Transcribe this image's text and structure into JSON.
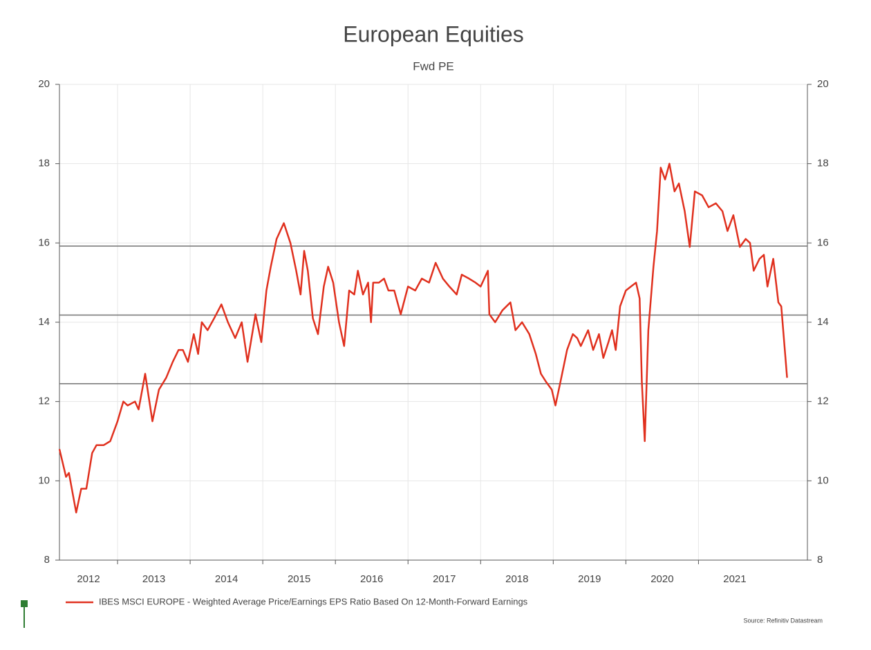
{
  "chart_data": {
    "type": "line",
    "title": "European Equities",
    "subtitle": "Fwd PE",
    "x": [
      2012.2,
      2012.29,
      2012.33,
      2012.43,
      2012.5,
      2012.57,
      2012.65,
      2012.71,
      2012.81,
      2012.9,
      2013.0,
      2013.08,
      2013.14,
      2013.24,
      2013.29,
      2013.38,
      2013.48,
      2013.57,
      2013.67,
      2013.76,
      2013.84,
      2013.9,
      2013.97,
      2014.05,
      2014.11,
      2014.16,
      2014.24,
      2014.33,
      2014.43,
      2014.52,
      2014.62,
      2014.71,
      2014.79,
      2014.9,
      2014.98,
      2015.05,
      2015.11,
      2015.19,
      2015.29,
      2015.38,
      2015.46,
      2015.52,
      2015.57,
      2015.62,
      2015.69,
      2015.76,
      2015.84,
      2015.9,
      2015.97,
      2016.05,
      2016.12,
      2016.19,
      2016.26,
      2016.31,
      2016.38,
      2016.45,
      2016.49,
      2016.52,
      2016.6,
      2016.67,
      2016.73,
      2016.81,
      2016.9,
      2017.0,
      2017.1,
      2017.19,
      2017.29,
      2017.38,
      2017.48,
      2017.57,
      2017.67,
      2017.74,
      2017.84,
      2017.93,
      2018.0,
      2018.1,
      2018.12,
      2018.2,
      2018.3,
      2018.41,
      2018.48,
      2018.57,
      2018.67,
      2018.76,
      2018.83,
      2018.9,
      2018.98,
      2019.03,
      2019.1,
      2019.19,
      2019.27,
      2019.33,
      2019.38,
      2019.48,
      2019.55,
      2019.63,
      2019.69,
      2019.76,
      2019.81,
      2019.86,
      2019.92,
      2020.0,
      2020.07,
      2020.14,
      2020.19,
      2020.22,
      2020.26,
      2020.31,
      2020.38,
      2020.43,
      2020.48,
      2020.54,
      2020.6,
      2020.67,
      2020.73,
      2020.81,
      2020.88,
      2020.95,
      2021.05,
      2021.14,
      2021.24,
      2021.33,
      2021.4,
      2021.48,
      2021.57,
      2021.65,
      2021.71,
      2021.76,
      2021.84,
      2021.9,
      2021.95,
      2022.03,
      2022.1,
      2022.14,
      2022.22
    ],
    "series": [
      {
        "name": "IBES MSCI EUROPE - Weighted Average Price/Earnings EPS Ratio Based On 12-Month-Forward Earnings",
        "color": "#e0301e",
        "values": [
          10.8,
          10.1,
          10.2,
          9.2,
          9.8,
          9.8,
          10.7,
          10.9,
          10.9,
          11.0,
          11.5,
          12.0,
          11.9,
          12.0,
          11.8,
          12.7,
          11.5,
          12.3,
          12.6,
          13.0,
          13.3,
          13.3,
          13.0,
          13.7,
          13.2,
          14.0,
          13.8,
          14.1,
          14.45,
          14.0,
          13.6,
          14.0,
          13.0,
          14.2,
          13.5,
          14.8,
          15.4,
          16.1,
          16.5,
          16.0,
          15.3,
          14.7,
          15.8,
          15.3,
          14.1,
          13.7,
          14.9,
          15.4,
          15.0,
          14.0,
          13.4,
          14.8,
          14.7,
          15.3,
          14.7,
          15.0,
          14.0,
          15.0,
          15.0,
          15.1,
          14.8,
          14.8,
          14.2,
          14.9,
          14.8,
          15.1,
          15.0,
          15.5,
          15.1,
          14.9,
          14.7,
          15.2,
          15.1,
          15.0,
          14.9,
          15.3,
          14.2,
          14.0,
          14.3,
          14.5,
          13.8,
          14.0,
          13.7,
          13.2,
          12.7,
          12.5,
          12.3,
          11.9,
          12.5,
          13.3,
          13.7,
          13.6,
          13.4,
          13.8,
          13.3,
          13.7,
          13.1,
          13.5,
          13.8,
          13.3,
          14.4,
          14.8,
          14.9,
          15.0,
          14.6,
          12.5,
          11.0,
          13.8,
          15.4,
          16.3,
          17.9,
          17.6,
          18.0,
          17.3,
          17.5,
          16.8,
          15.9,
          17.3,
          17.2,
          16.9,
          17.0,
          16.8,
          16.3,
          16.7,
          15.9,
          16.1,
          16.0,
          15.3,
          15.6,
          15.7,
          14.9,
          15.6,
          14.5,
          14.4,
          12.6
        ]
      }
    ],
    "hlines": [
      15.92,
      14.18,
      12.45
    ],
    "hline_color": "#707070",
    "xlim": [
      2012.2,
      2022.5
    ],
    "xticks": [
      2012,
      2013,
      2014,
      2015,
      2016,
      2017,
      2018,
      2019,
      2020,
      2021
    ],
    "ylim": [
      8,
      20
    ],
    "yticks": [
      8,
      10,
      12,
      14,
      16,
      18,
      20
    ],
    "grid": true,
    "source": "Source: Refinitiv Datastream"
  }
}
